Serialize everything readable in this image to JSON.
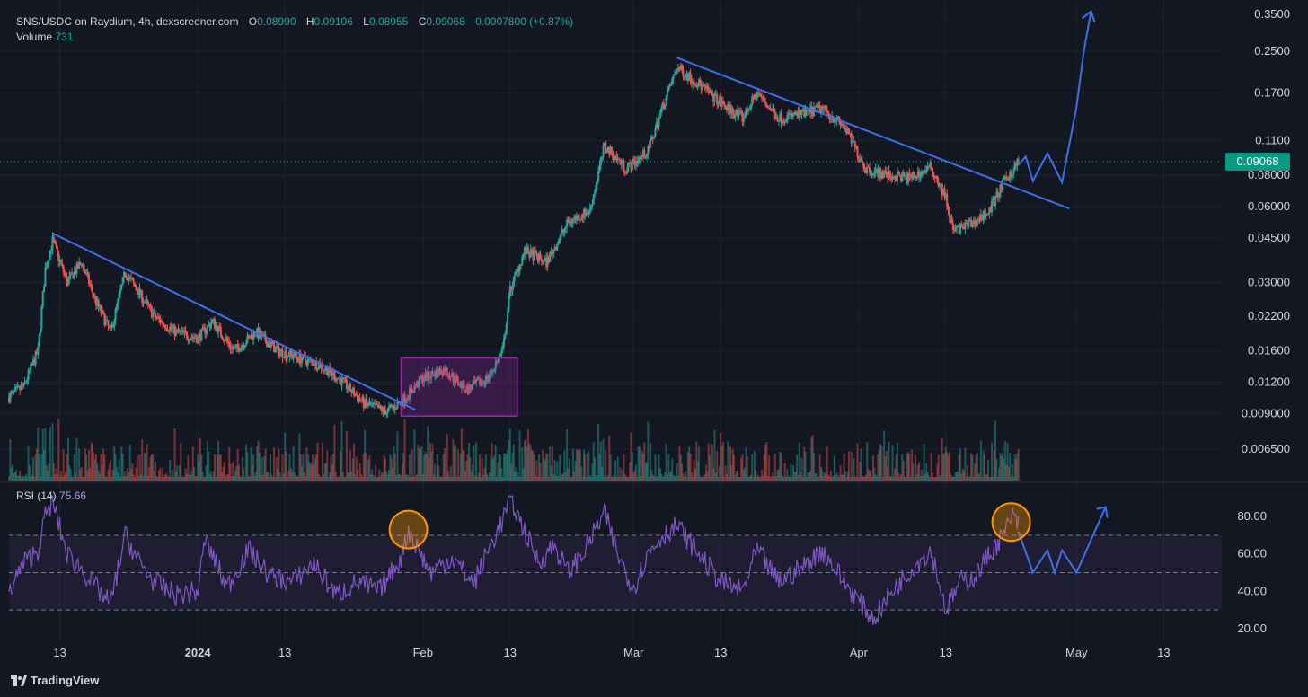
{
  "header": {
    "symbol": "SNS/USDC on Raydium, 4h, dexscreener.com",
    "o_label": "O",
    "o_value": "0.08990",
    "h_label": "H",
    "h_value": "0.09106",
    "l_label": "L",
    "l_value": "0.08955",
    "c_label": "C",
    "c_value": "0.09068",
    "change": "0.0007800 (+0.87%)"
  },
  "volume": {
    "label": "Volume",
    "value": "731"
  },
  "rsi": {
    "label": "RSI (14)",
    "value": "75.66"
  },
  "last_price_tag": "0.09068",
  "brand": "TradingView",
  "colors": {
    "bg": "#131722",
    "up": "#26a69a",
    "down": "#ef5350",
    "rsi": "#7e57c2",
    "trend": "#2962ff",
    "box": "#9c27b0",
    "circle": "#ff9800"
  },
  "chart_data": [
    {
      "type": "candlestick",
      "scale": "log",
      "price_axis_labels": [
        "0.3500",
        "0.2500",
        "0.1700",
        "0.1100",
        "0.08000",
        "0.06000",
        "0.04500",
        "0.03000",
        "0.02200",
        "0.01600",
        "0.01200",
        "0.009000",
        "0.006500"
      ],
      "price_axis_values": [
        0.35,
        0.25,
        0.17,
        0.11,
        0.08,
        0.06,
        0.045,
        0.03,
        0.022,
        0.016,
        0.012,
        0.009,
        0.0065
      ],
      "x_axis_labels": [
        {
          "label": "13",
          "date": "2023-12-13"
        },
        {
          "label": "2024",
          "date": "2024-01-01"
        },
        {
          "label": "13",
          "date": "2024-01-13"
        },
        {
          "label": "Feb",
          "date": "2024-02-01"
        },
        {
          "label": "13",
          "date": "2024-02-13"
        },
        {
          "label": "Mar",
          "date": "2024-03-01"
        },
        {
          "label": "13",
          "date": "2024-03-13"
        },
        {
          "label": "Apr",
          "date": "2024-04-01"
        },
        {
          "label": "13",
          "date": "2024-04-13"
        },
        {
          "label": "May",
          "date": "2024-05-01"
        },
        {
          "label": "13",
          "date": "2024-05-13"
        }
      ],
      "date_range": [
        "2023-12-06",
        "2024-05-21"
      ],
      "price_path": [
        {
          "date": "2023-12-06",
          "price": 0.0105
        },
        {
          "date": "2023-12-08",
          "price": 0.0115
        },
        {
          "date": "2023-12-10",
          "price": 0.016
        },
        {
          "date": "2023-12-11",
          "price": 0.034
        },
        {
          "date": "2023-12-12",
          "price": 0.044
        },
        {
          "date": "2023-12-14",
          "price": 0.03
        },
        {
          "date": "2023-12-16",
          "price": 0.036
        },
        {
          "date": "2023-12-18",
          "price": 0.025
        },
        {
          "date": "2023-12-20",
          "price": 0.019
        },
        {
          "date": "2023-12-22",
          "price": 0.033
        },
        {
          "date": "2023-12-24",
          "price": 0.027
        },
        {
          "date": "2023-12-26",
          "price": 0.022
        },
        {
          "date": "2023-12-29",
          "price": 0.019
        },
        {
          "date": "2024-01-01",
          "price": 0.018
        },
        {
          "date": "2024-01-03",
          "price": 0.021
        },
        {
          "date": "2024-01-06",
          "price": 0.016
        },
        {
          "date": "2024-01-09",
          "price": 0.019
        },
        {
          "date": "2024-01-12",
          "price": 0.016
        },
        {
          "date": "2024-01-15",
          "price": 0.015
        },
        {
          "date": "2024-01-18",
          "price": 0.014
        },
        {
          "date": "2024-01-21",
          "price": 0.012
        },
        {
          "date": "2024-01-24",
          "price": 0.0098
        },
        {
          "date": "2024-01-27",
          "price": 0.0092
        },
        {
          "date": "2024-01-29",
          "price": 0.01
        },
        {
          "date": "2024-02-01",
          "price": 0.0125
        },
        {
          "date": "2024-02-04",
          "price": 0.0135
        },
        {
          "date": "2024-02-07",
          "price": 0.0112
        },
        {
          "date": "2024-02-10",
          "price": 0.0125
        },
        {
          "date": "2024-02-12",
          "price": 0.016
        },
        {
          "date": "2024-02-13",
          "price": 0.028
        },
        {
          "date": "2024-02-15",
          "price": 0.04
        },
        {
          "date": "2024-02-18",
          "price": 0.036
        },
        {
          "date": "2024-02-21",
          "price": 0.052
        },
        {
          "date": "2024-02-24",
          "price": 0.058
        },
        {
          "date": "2024-02-26",
          "price": 0.105
        },
        {
          "date": "2024-02-29",
          "price": 0.085
        },
        {
          "date": "2024-03-03",
          "price": 0.1
        },
        {
          "date": "2024-03-05",
          "price": 0.15
        },
        {
          "date": "2024-03-07",
          "price": 0.215
        },
        {
          "date": "2024-03-10",
          "price": 0.185
        },
        {
          "date": "2024-03-13",
          "price": 0.155
        },
        {
          "date": "2024-03-16",
          "price": 0.135
        },
        {
          "date": "2024-03-18",
          "price": 0.17
        },
        {
          "date": "2024-03-21",
          "price": 0.135
        },
        {
          "date": "2024-03-24",
          "price": 0.14
        },
        {
          "date": "2024-03-27",
          "price": 0.148
        },
        {
          "date": "2024-03-30",
          "price": 0.125
        },
        {
          "date": "2024-04-02",
          "price": 0.085
        },
        {
          "date": "2024-04-05",
          "price": 0.08
        },
        {
          "date": "2024-04-08",
          "price": 0.078
        },
        {
          "date": "2024-04-11",
          "price": 0.086
        },
        {
          "date": "2024-04-13",
          "price": 0.065
        },
        {
          "date": "2024-04-14",
          "price": 0.048
        },
        {
          "date": "2024-04-17",
          "price": 0.052
        },
        {
          "date": "2024-04-19",
          "price": 0.058
        },
        {
          "date": "2024-04-21",
          "price": 0.075
        },
        {
          "date": "2024-04-23",
          "price": 0.0907
        }
      ],
      "last_price": 0.09068,
      "annotations": {
        "trendline_1": [
          {
            "date": "2023-12-12",
            "price": 0.047
          },
          {
            "date": "2024-01-31",
            "price": 0.0093
          }
        ],
        "trendline_2": [
          {
            "date": "2024-03-07",
            "price": 0.235
          },
          {
            "date": "2024-04-30",
            "price": 0.059
          }
        ],
        "consolidation_box": {
          "start": "2024-01-29",
          "end": "2024-02-14",
          "low": 0.0088,
          "high": 0.015
        },
        "projection": [
          {
            "date": "2024-04-23",
            "price": 0.088
          },
          {
            "date": "2024-04-24",
            "price": 0.095
          },
          {
            "date": "2024-04-25",
            "price": 0.076
          },
          {
            "date": "2024-04-27",
            "price": 0.098
          },
          {
            "date": "2024-04-29",
            "price": 0.075
          },
          {
            "date": "2024-05-01",
            "price": 0.15
          },
          {
            "date": "2024-05-02",
            "price": 0.25
          },
          {
            "date": "2024-05-03",
            "price": 0.36
          }
        ]
      }
    },
    {
      "type": "line",
      "name": "RSI (14)",
      "y_axis_labels": [
        "80.00",
        "60.00",
        "40.00",
        "20.00"
      ],
      "y_axis_values": [
        80,
        60,
        40,
        20
      ],
      "ylim": [
        15,
        92
      ],
      "band_levels": [
        30,
        50,
        70
      ],
      "rsi_path": [
        {
          "date": "2023-12-06",
          "rsi": 40
        },
        {
          "date": "2023-12-08",
          "rsi": 55
        },
        {
          "date": "2023-12-10",
          "rsi": 62
        },
        {
          "date": "2023-12-11",
          "rsi": 80
        },
        {
          "date": "2023-12-12",
          "rsi": 88
        },
        {
          "date": "2023-12-14",
          "rsi": 60
        },
        {
          "date": "2023-12-16",
          "rsi": 52
        },
        {
          "date": "2023-12-18",
          "rsi": 42
        },
        {
          "date": "2023-12-20",
          "rsi": 33
        },
        {
          "date": "2023-12-22",
          "rsi": 70
        },
        {
          "date": "2023-12-24",
          "rsi": 55
        },
        {
          "date": "2023-12-26",
          "rsi": 45
        },
        {
          "date": "2023-12-29",
          "rsi": 38
        },
        {
          "date": "2024-01-01",
          "rsi": 40
        },
        {
          "date": "2024-01-02",
          "rsi": 68
        },
        {
          "date": "2024-01-05",
          "rsi": 42
        },
        {
          "date": "2024-01-08",
          "rsi": 62
        },
        {
          "date": "2024-01-11",
          "rsi": 48
        },
        {
          "date": "2024-01-14",
          "rsi": 45
        },
        {
          "date": "2024-01-17",
          "rsi": 55
        },
        {
          "date": "2024-01-20",
          "rsi": 38
        },
        {
          "date": "2024-01-23",
          "rsi": 45
        },
        {
          "date": "2024-01-26",
          "rsi": 40
        },
        {
          "date": "2024-01-29",
          "rsi": 58
        },
        {
          "date": "2024-01-30",
          "rsi": 73
        },
        {
          "date": "2024-02-02",
          "rsi": 50
        },
        {
          "date": "2024-02-05",
          "rsi": 58
        },
        {
          "date": "2024-02-08",
          "rsi": 44
        },
        {
          "date": "2024-02-10",
          "rsi": 62
        },
        {
          "date": "2024-02-12",
          "rsi": 78
        },
        {
          "date": "2024-02-13",
          "rsi": 90
        },
        {
          "date": "2024-02-15",
          "rsi": 72
        },
        {
          "date": "2024-02-17",
          "rsi": 55
        },
        {
          "date": "2024-02-19",
          "rsi": 65
        },
        {
          "date": "2024-02-21",
          "rsi": 50
        },
        {
          "date": "2024-02-23",
          "rsi": 60
        },
        {
          "date": "2024-02-26",
          "rsi": 82
        },
        {
          "date": "2024-02-28",
          "rsi": 58
        },
        {
          "date": "2024-03-01",
          "rsi": 42
        },
        {
          "date": "2024-03-03",
          "rsi": 60
        },
        {
          "date": "2024-03-05",
          "rsi": 70
        },
        {
          "date": "2024-03-07",
          "rsi": 75
        },
        {
          "date": "2024-03-10",
          "rsi": 60
        },
        {
          "date": "2024-03-13",
          "rsi": 45
        },
        {
          "date": "2024-03-16",
          "rsi": 40
        },
        {
          "date": "2024-03-18",
          "rsi": 62
        },
        {
          "date": "2024-03-21",
          "rsi": 45
        },
        {
          "date": "2024-03-24",
          "rsi": 52
        },
        {
          "date": "2024-03-27",
          "rsi": 62
        },
        {
          "date": "2024-03-30",
          "rsi": 45
        },
        {
          "date": "2024-04-01",
          "rsi": 35
        },
        {
          "date": "2024-04-03",
          "rsi": 25
        },
        {
          "date": "2024-04-06",
          "rsi": 42
        },
        {
          "date": "2024-04-09",
          "rsi": 55
        },
        {
          "date": "2024-04-11",
          "rsi": 62
        },
        {
          "date": "2024-04-13",
          "rsi": 30
        },
        {
          "date": "2024-04-15",
          "rsi": 45
        },
        {
          "date": "2024-04-17",
          "rsi": 48
        },
        {
          "date": "2024-04-19",
          "rsi": 60
        },
        {
          "date": "2024-04-21",
          "rsi": 70
        },
        {
          "date": "2024-04-22",
          "rsi": 80
        },
        {
          "date": "2024-04-23",
          "rsi": 75.66
        }
      ],
      "projection": [
        {
          "date": "2024-04-23",
          "rsi": 72
        },
        {
          "date": "2024-04-25",
          "rsi": 50
        },
        {
          "date": "2024-04-27",
          "rsi": 62
        },
        {
          "date": "2024-04-28",
          "rsi": 50
        },
        {
          "date": "2024-04-29",
          "rsi": 62
        },
        {
          "date": "2024-05-01",
          "rsi": 50
        },
        {
          "date": "2024-05-05",
          "rsi": 85
        }
      ],
      "highlight_circles": [
        {
          "date": "2024-01-30",
          "rsi": 73
        },
        {
          "date": "2024-04-22",
          "rsi": 77
        }
      ]
    }
  ]
}
